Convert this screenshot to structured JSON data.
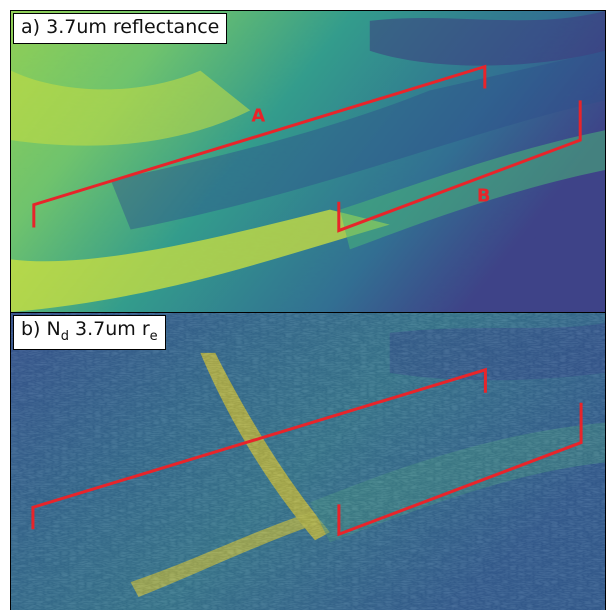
{
  "panels": [
    {
      "id": "a",
      "prefix": "a)",
      "title": "3.7um reflectance",
      "annotations": {
        "track_a": "A",
        "track_b": "B"
      }
    },
    {
      "id": "b",
      "prefix": "b) N",
      "sub1": "d",
      "middle": " 3.7um r",
      "sub2": "e"
    }
  ],
  "colors": {
    "track": "#e8242a",
    "colormap": [
      "#3b2f7e",
      "#31578c",
      "#24868e",
      "#3cb07a",
      "#8fd14f",
      "#e6e420"
    ]
  }
}
